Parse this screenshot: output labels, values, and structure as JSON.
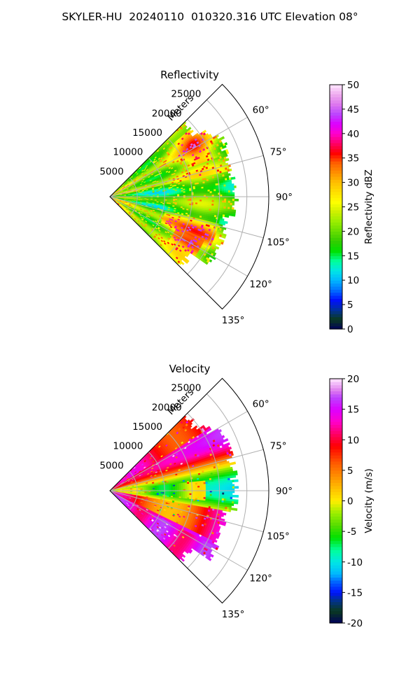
{
  "figure": {
    "suptitle": "SKYLER-HU  20240110  010320.316 UTC Elevation 08°"
  },
  "chart_data": [
    {
      "type": "heatmap",
      "projection": "polar sector (PPI)",
      "title": "Reflectivity",
      "radial_axis_label": "Meters",
      "radial_ticks": [
        5000,
        10000,
        15000,
        20000,
        25000
      ],
      "radial_range": [
        0,
        29000
      ],
      "azimuth_range_deg": [
        45,
        135
      ],
      "azimuth_tick_labels": [
        "60°",
        "75°",
        "90°",
        "105°",
        "120°",
        "135°"
      ],
      "azimuth_ticks_deg": [
        60,
        75,
        90,
        105,
        120,
        135
      ],
      "grid": true,
      "colorbar": {
        "label": "Reflectivity dBZ",
        "range": [
          0,
          50
        ],
        "ticks": [
          0,
          5,
          10,
          15,
          20,
          25,
          30,
          35,
          40,
          45,
          50
        ],
        "palette_stops": [
          {
            "v": 0,
            "c": "#00005a"
          },
          {
            "v": 2,
            "c": "#0a3a1f"
          },
          {
            "v": 4,
            "c": "#0030a0"
          },
          {
            "v": 6,
            "c": "#0010ff"
          },
          {
            "v": 8,
            "c": "#0070ff"
          },
          {
            "v": 10,
            "c": "#00b6ff"
          },
          {
            "v": 12,
            "c": "#00e6e6"
          },
          {
            "v": 14,
            "c": "#00ff99"
          },
          {
            "v": 16,
            "c": "#00e000"
          },
          {
            "v": 18,
            "c": "#33cc00"
          },
          {
            "v": 20,
            "c": "#66dd00"
          },
          {
            "v": 22,
            "c": "#99ee00"
          },
          {
            "v": 24,
            "c": "#ccf000"
          },
          {
            "v": 26,
            "c": "#ffff00"
          },
          {
            "v": 28,
            "c": "#ffe000"
          },
          {
            "v": 30,
            "c": "#ffc000"
          },
          {
            "v": 32,
            "c": "#ff9000"
          },
          {
            "v": 34,
            "c": "#ff6000"
          },
          {
            "v": 36,
            "c": "#ff0000"
          },
          {
            "v": 38,
            "c": "#ff0066"
          },
          {
            "v": 40,
            "c": "#ff00cc"
          },
          {
            "v": 42,
            "c": "#dd00ff"
          },
          {
            "v": 44,
            "c": "#bb44ff"
          },
          {
            "v": 46,
            "c": "#dd77ee"
          },
          {
            "v": 48,
            "c": "#eeaaee"
          },
          {
            "v": 50,
            "c": "#ffe6ff"
          }
        ]
      },
      "field_description": "mostly 20–30 dBZ with cores near 35–42 dBZ"
    },
    {
      "type": "heatmap",
      "projection": "polar sector (PPI)",
      "title": "Velocity",
      "radial_axis_label": "Meters",
      "radial_ticks": [
        5000,
        10000,
        15000,
        20000,
        25000
      ],
      "radial_range": [
        0,
        29000
      ],
      "azimuth_range_deg": [
        45,
        135
      ],
      "azimuth_tick_labels": [
        "60°",
        "75°",
        "90°",
        "105°",
        "120°",
        "135°"
      ],
      "azimuth_ticks_deg": [
        60,
        75,
        90,
        105,
        120,
        135
      ],
      "grid": true,
      "colorbar": {
        "label": "Velocity (m/s)",
        "range": [
          -20,
          20
        ],
        "ticks": [
          -20,
          -15,
          -10,
          -5,
          0,
          5,
          10,
          15,
          20
        ],
        "palette_stops": [
          {
            "v": -20,
            "c": "#00005a"
          },
          {
            "v": -18,
            "c": "#0a3a1f"
          },
          {
            "v": -16,
            "c": "#0030a0"
          },
          {
            "v": -15,
            "c": "#0010ff"
          },
          {
            "v": -13,
            "c": "#0070ff"
          },
          {
            "v": -12,
            "c": "#00b6ff"
          },
          {
            "v": -10,
            "c": "#00e6e6"
          },
          {
            "v": -8,
            "c": "#00ff99"
          },
          {
            "v": -6,
            "c": "#00e000"
          },
          {
            "v": -4,
            "c": "#55dd00"
          },
          {
            "v": -2,
            "c": "#99ee00"
          },
          {
            "v": 0,
            "c": "#ffee00"
          },
          {
            "v": 2,
            "c": "#ffc000"
          },
          {
            "v": 4,
            "c": "#ff9000"
          },
          {
            "v": 6,
            "c": "#ff6000"
          },
          {
            "v": 9,
            "c": "#ff0000"
          },
          {
            "v": 11,
            "c": "#ff0066"
          },
          {
            "v": 13,
            "c": "#ff00cc"
          },
          {
            "v": 15,
            "c": "#dd00ff"
          },
          {
            "v": 17,
            "c": "#bb44ff"
          },
          {
            "v": 18,
            "c": "#dd77ee"
          },
          {
            "v": 20,
            "c": "#ffe6ff"
          }
        ]
      },
      "field_description": "banded velocity pattern, ~-10 to +15 m/s"
    }
  ]
}
